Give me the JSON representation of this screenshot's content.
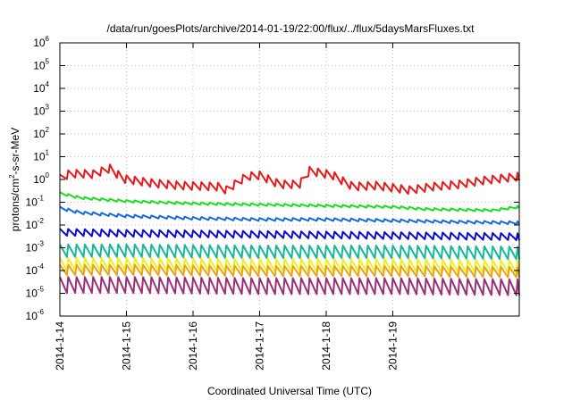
{
  "chart_data": {
    "type": "line",
    "title": "/data/run/goesPlots/archive/2014-01-19/22:00/flux/../flux/5daysMarsFluxes.txt",
    "xlabel": "Coordinated Universal Time (UTC)",
    "ylabel_prefix": "protons/cm",
    "ylabel_sup": "2",
    "ylabel_suffix": "-s-sr-MeV",
    "yscale": "log",
    "ylim_exp": [
      -6,
      6
    ],
    "ytick_base": "10",
    "ytick_exps": [
      "-6",
      "-5",
      "-4",
      "-3",
      "-2",
      "-1",
      "0",
      "1",
      "2",
      "3",
      "4",
      "5",
      "6"
    ],
    "xlim_days": [
      0,
      6.9
    ],
    "xticks": [
      {
        "day": 0,
        "label": "2014-1-14"
      },
      {
        "day": 1,
        "label": "2014-1-15"
      },
      {
        "day": 2,
        "label": "2014-1-16"
      },
      {
        "day": 3,
        "label": "2014-1-17"
      },
      {
        "day": 4,
        "label": "2014-1-18"
      },
      {
        "day": 5,
        "label": "2014-1-19"
      }
    ],
    "grid": true,
    "legend": "none",
    "sawtooth_period_days": 0.125,
    "series": [
      {
        "color": "#e8191b",
        "points": [
          [
            0,
            0.05
          ],
          [
            0.15,
            0.28
          ],
          [
            0.5,
            0.25
          ],
          [
            0.75,
            0.5
          ],
          [
            0.95,
            0.05
          ],
          [
            1.4,
            -0.15
          ],
          [
            1.8,
            -0.25
          ],
          [
            2.4,
            -0.3
          ],
          [
            2.5,
            -0.45
          ],
          [
            2.5,
            -0.45
          ],
          [
            2.8,
            0.15
          ],
          [
            3.0,
            0.2
          ],
          [
            3.3,
            -0.2
          ],
          [
            3.6,
            -0.2
          ],
          [
            3.75,
            0.4
          ],
          [
            4.1,
            0.2
          ],
          [
            4.4,
            -0.3
          ],
          [
            4.75,
            -0.25
          ],
          [
            5.25,
            -0.45
          ],
          [
            5.6,
            -0.3
          ],
          [
            6.0,
            -0.2
          ],
          [
            6.3,
            -0.05
          ],
          [
            6.9,
            0.15
          ]
        ],
        "amp": 0.35
      },
      {
        "color": "#16e01a",
        "points": [
          [
            0,
            -0.6
          ],
          [
            0.3,
            -0.8
          ],
          [
            1.0,
            -0.95
          ],
          [
            2.0,
            -1.05
          ],
          [
            3.0,
            -1.1
          ],
          [
            4.0,
            -1.15
          ],
          [
            5.0,
            -1.2
          ],
          [
            5.5,
            -1.3
          ],
          [
            6.5,
            -1.35
          ],
          [
            6.9,
            -1.2
          ]
        ],
        "amp": 0.1
      },
      {
        "color": "#1469e0",
        "points": [
          [
            0,
            -1.25
          ],
          [
            0.3,
            -1.45
          ],
          [
            1.0,
            -1.6
          ],
          [
            2.0,
            -1.7
          ],
          [
            3.0,
            -1.75
          ],
          [
            4.0,
            -1.75
          ],
          [
            5.0,
            -1.8
          ],
          [
            5.8,
            -1.85
          ],
          [
            6.9,
            -1.9
          ]
        ],
        "amp": 0.12
      },
      {
        "color": "#0b0bd3",
        "points": [
          [
            0,
            -2.3
          ],
          [
            1.0,
            -2.35
          ],
          [
            3.0,
            -2.4
          ],
          [
            5.0,
            -2.45
          ],
          [
            6.9,
            -2.5
          ]
        ],
        "amp": 0.3
      },
      {
        "color": "#16b89a",
        "points": [
          [
            0,
            -3.1
          ],
          [
            1.0,
            -3.1
          ],
          [
            3.0,
            -3.15
          ],
          [
            5.0,
            -3.15
          ],
          [
            6.9,
            -3.2
          ]
        ],
        "amp": 0.55
      },
      {
        "color": "#f0ef1c",
        "points": [
          [
            0,
            -3.7
          ],
          [
            1.0,
            -3.7
          ],
          [
            3.0,
            -3.75
          ],
          [
            5.0,
            -3.75
          ],
          [
            6.9,
            -3.8
          ]
        ],
        "amp": 0.55
      },
      {
        "color": "#e8a417",
        "points": [
          [
            0,
            -3.95
          ],
          [
            1.0,
            -3.95
          ],
          [
            3.0,
            -4.0
          ],
          [
            5.0,
            -4.0
          ],
          [
            6.9,
            -4.05
          ]
        ],
        "amp": 0.45
      },
      {
        "color": "#9b2f77",
        "points": [
          [
            0,
            -4.6
          ],
          [
            1.0,
            -4.6
          ],
          [
            3.0,
            -4.65
          ],
          [
            5.0,
            -4.65
          ],
          [
            6.9,
            -4.7
          ]
        ],
        "amp": 0.7
      }
    ]
  }
}
